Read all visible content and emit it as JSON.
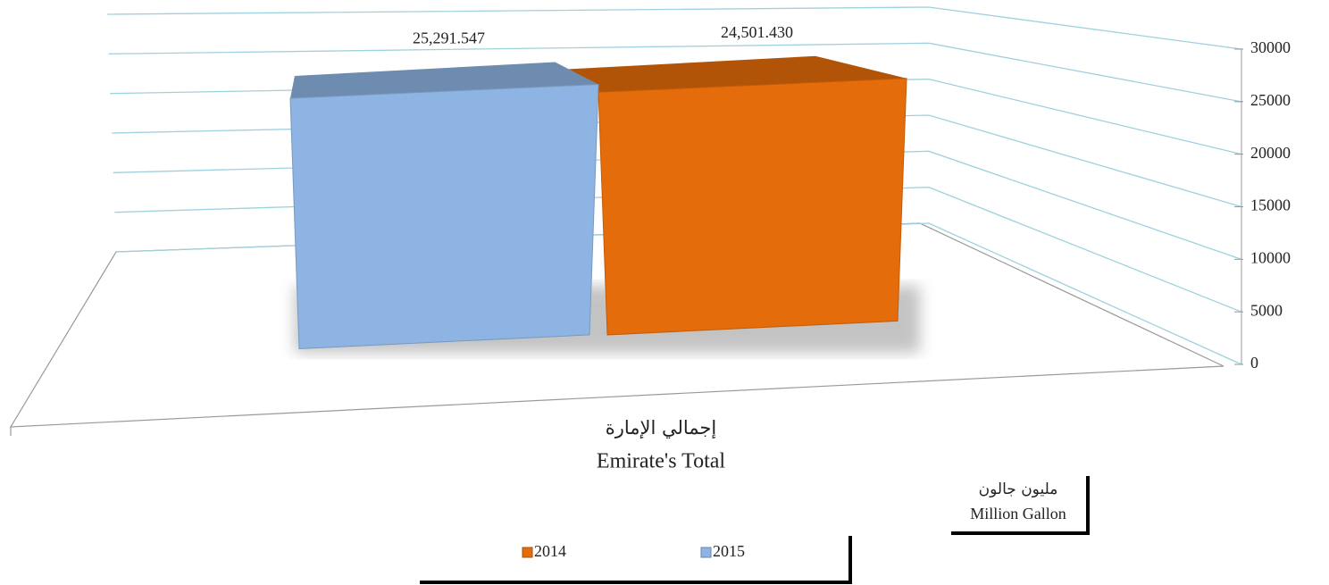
{
  "chart_data": {
    "type": "bar3d",
    "categories": [
      [
        "إجمالي الإمارة",
        "Emirate's Total"
      ]
    ],
    "series": [
      {
        "name": "2014",
        "color": "#e46c0a",
        "values": [
          24501.43
        ],
        "value_labels": [
          "24,501.430"
        ]
      },
      {
        "name": "2015",
        "color": "#8db4e2",
        "values": [
          25291.547
        ],
        "value_labels": [
          "25,291.547"
        ]
      }
    ],
    "unit_label": [
      "مليون جالون",
      "Million Gallon"
    ],
    "ylim": [
      0,
      30000
    ],
    "yticks": [
      0,
      5000,
      10000,
      15000,
      20000,
      25000,
      30000
    ],
    "grid": true,
    "legend": "bottom"
  }
}
